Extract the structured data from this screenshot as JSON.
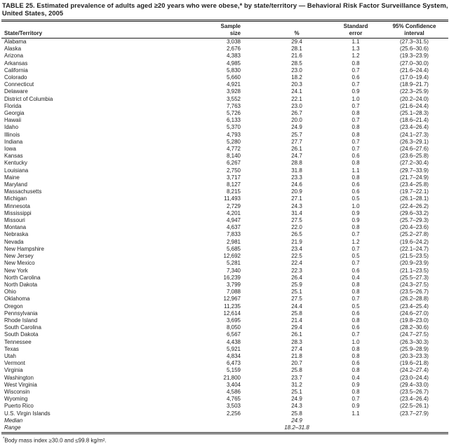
{
  "title": "TABLE 25. Estimated prevalence of adults aged ≥20 years who were obese,* by state/territory — Behavioral Risk Factor Surveillance System, United States, 2005",
  "table": {
    "headers": {
      "state": "State/Territory",
      "sample": [
        "Sample",
        "size"
      ],
      "pct": "%",
      "se": [
        "Standard",
        "error"
      ],
      "ci": [
        "95% Confidence",
        "interval"
      ]
    },
    "rows": [
      {
        "state": "Alabama",
        "sample": "3,038",
        "pct": "29.4",
        "se": "1.1",
        "ci": "(27.3–31.5)"
      },
      {
        "state": "Alaska",
        "sample": "2,676",
        "pct": "28.1",
        "se": "1.3",
        "ci": "(25.6–30.6)"
      },
      {
        "state": "Arizona",
        "sample": "4,383",
        "pct": "21.6",
        "se": "1.2",
        "ci": "(19.3–23.9)"
      },
      {
        "state": "Arkansas",
        "sample": "4,985",
        "pct": "28.5",
        "se": "0.8",
        "ci": "(27.0–30.0)"
      },
      {
        "state": "California",
        "sample": "5,830",
        "pct": "23.0",
        "se": "0.7",
        "ci": "(21.6–24.4)"
      },
      {
        "state": "Colorado",
        "sample": "5,660",
        "pct": "18.2",
        "se": "0.6",
        "ci": "(17.0–19.4)"
      },
      {
        "state": "Connecticut",
        "sample": "4,921",
        "pct": "20.3",
        "se": "0.7",
        "ci": "(18.9–21.7)"
      },
      {
        "state": "Delaware",
        "sample": "3,928",
        "pct": "24.1",
        "se": "0.9",
        "ci": "(22.3–25.9)"
      },
      {
        "state": "District of Columbia",
        "sample": "3,552",
        "pct": "22.1",
        "se": "1.0",
        "ci": "(20.2–24.0)"
      },
      {
        "state": "Florida",
        "sample": "7,763",
        "pct": "23.0",
        "se": "0.7",
        "ci": "(21.6–24.4)"
      },
      {
        "state": "Georgia",
        "sample": "5,726",
        "pct": "26.7",
        "se": "0.8",
        "ci": "(25.1–28.3)"
      },
      {
        "state": "Hawaii",
        "sample": "6,133",
        "pct": "20.0",
        "se": "0.7",
        "ci": "(18.6–21.4)"
      },
      {
        "state": "Idaho",
        "sample": "5,370",
        "pct": "24.9",
        "se": "0.8",
        "ci": "(23.4–26.4)"
      },
      {
        "state": "Illinois",
        "sample": "4,793",
        "pct": "25.7",
        "se": "0.8",
        "ci": "(24.1–27.3)"
      },
      {
        "state": "Indiana",
        "sample": "5,280",
        "pct": "27.7",
        "se": "0.7",
        "ci": "(26.3–29.1)"
      },
      {
        "state": "Iowa",
        "sample": "4,772",
        "pct": "26.1",
        "se": "0.7",
        "ci": "(24.6–27.6)"
      },
      {
        "state": "Kansas",
        "sample": "8,140",
        "pct": "24.7",
        "se": "0.6",
        "ci": "(23.6–25.8)"
      },
      {
        "state": "Kentucky",
        "sample": "6,267",
        "pct": "28.8",
        "se": "0.8",
        "ci": "(27.2–30.4)"
      },
      {
        "state": "Louisiana",
        "sample": "2,750",
        "pct": "31.8",
        "se": "1.1",
        "ci": "(29.7–33.9)"
      },
      {
        "state": "Maine",
        "sample": "3,717",
        "pct": "23.3",
        "se": "0.8",
        "ci": "(21.7–24.9)"
      },
      {
        "state": "Maryland",
        "sample": "8,127",
        "pct": "24.6",
        "se": "0.6",
        "ci": "(23.4–25.8)"
      },
      {
        "state": "Massachusetts",
        "sample": "8,215",
        "pct": "20.9",
        "se": "0.6",
        "ci": "(19.7–22.1)"
      },
      {
        "state": "Michigan",
        "sample": "11,493",
        "pct": "27.1",
        "se": "0.5",
        "ci": "(26.1–28.1)"
      },
      {
        "state": "Minnesota",
        "sample": "2,729",
        "pct": "24.3",
        "se": "1.0",
        "ci": "(22.4–26.2)"
      },
      {
        "state": "Mississippi",
        "sample": "4,201",
        "pct": "31.4",
        "se": "0.9",
        "ci": "(29.6–33.2)"
      },
      {
        "state": "Missouri",
        "sample": "4,947",
        "pct": "27.5",
        "se": "0.9",
        "ci": "(25.7–29.3)"
      },
      {
        "state": "Montana",
        "sample": "4,637",
        "pct": "22.0",
        "se": "0.8",
        "ci": "(20.4–23.6)"
      },
      {
        "state": "Nebraska",
        "sample": "7,833",
        "pct": "26.5",
        "se": "0.7",
        "ci": "(25.2–27.8)"
      },
      {
        "state": "Nevada",
        "sample": "2,981",
        "pct": "21.9",
        "se": "1.2",
        "ci": "(19.6–24.2)"
      },
      {
        "state": "New Hampshire",
        "sample": "5,685",
        "pct": "23.4",
        "se": "0.7",
        "ci": "(22.1–24.7)"
      },
      {
        "state": "New Jersey",
        "sample": "12,692",
        "pct": "22.5",
        "se": "0.5",
        "ci": "(21.5–23.5)"
      },
      {
        "state": "New Mexico",
        "sample": "5,281",
        "pct": "22.4",
        "se": "0.7",
        "ci": "(20.9–23.9)"
      },
      {
        "state": "New York",
        "sample": "7,340",
        "pct": "22.3",
        "se": "0.6",
        "ci": "(21.1–23.5)"
      },
      {
        "state": "North Carolina",
        "sample": "16,239",
        "pct": "26.4",
        "se": "0.4",
        "ci": "(25.5–27.3)"
      },
      {
        "state": "North Dakota",
        "sample": "3,799",
        "pct": "25.9",
        "se": "0.8",
        "ci": "(24.3–27.5)"
      },
      {
        "state": "Ohio",
        "sample": "7,088",
        "pct": "25.1",
        "se": "0.8",
        "ci": "(23.5–26.7)"
      },
      {
        "state": "Oklahoma",
        "sample": "12,967",
        "pct": "27.5",
        "se": "0.7",
        "ci": "(26.2–28.8)"
      },
      {
        "state": "Oregon",
        "sample": "11,235",
        "pct": "24.4",
        "se": "0.5",
        "ci": "(23.4–25.4)"
      },
      {
        "state": "Pennsylvania",
        "sample": "12,614",
        "pct": "25.8",
        "se": "0.6",
        "ci": "(24.6–27.0)"
      },
      {
        "state": "Rhode Island",
        "sample": "3,695",
        "pct": "21.4",
        "se": "0.8",
        "ci": "(19.8–23.0)"
      },
      {
        "state": "South Carolina",
        "sample": "8,050",
        "pct": "29.4",
        "se": "0.6",
        "ci": "(28.2–30.6)"
      },
      {
        "state": "South Dakota",
        "sample": "6,567",
        "pct": "26.1",
        "se": "0.7",
        "ci": "(24.7–27.5)"
      },
      {
        "state": "Tennessee",
        "sample": "4,438",
        "pct": "28.3",
        "se": "1.0",
        "ci": "(26.3–30.3)"
      },
      {
        "state": "Texas",
        "sample": "5,921",
        "pct": "27.4",
        "se": "0.8",
        "ci": "(25.9–28.9)"
      },
      {
        "state": "Utah",
        "sample": "4,834",
        "pct": "21.8",
        "se": "0.8",
        "ci": "(20.3–23.3)"
      },
      {
        "state": "Vermont",
        "sample": "6,473",
        "pct": "20.7",
        "se": "0.6",
        "ci": "(19.6–21.8)"
      },
      {
        "state": "Virginia",
        "sample": "5,159",
        "pct": "25.8",
        "se": "0.8",
        "ci": "(24.2–27.4)"
      },
      {
        "state": "Washington",
        "sample": "21,800",
        "pct": "23.7",
        "se": "0.4",
        "ci": "(23.0–24.4)"
      },
      {
        "state": "West Virginia",
        "sample": "3,404",
        "pct": "31.2",
        "se": "0.9",
        "ci": "(29.4–33.0)"
      },
      {
        "state": "Wisconsin",
        "sample": "4,586",
        "pct": "25.1",
        "se": "0.8",
        "ci": "(23.5–26.7)"
      },
      {
        "state": "Wyoming",
        "sample": "4,765",
        "pct": "24.9",
        "se": "0.7",
        "ci": "(23.4–26.4)"
      },
      {
        "state": "Puerto Rico",
        "sample": "3,503",
        "pct": "24.3",
        "se": "0.9",
        "ci": "(22.5–26.1)"
      },
      {
        "state": "U.S. Virgin Islands",
        "sample": "2,256",
        "pct": "25.8",
        "se": "1.1",
        "ci": "(23.7–27.9)"
      }
    ],
    "summary_rows": [
      {
        "state": "Median",
        "sample": "",
        "pct": "24.9",
        "se": "",
        "ci": ""
      },
      {
        "state": "Range",
        "sample": "",
        "pct": "18.2–31.8",
        "se": "",
        "ci": ""
      }
    ]
  },
  "footnote": {
    "marker": "*",
    "text": "Body mass index ≥30.0 and ≤99.8 kg/m²."
  },
  "colors": {
    "text": "#1c1c1c",
    "background": "#ffffff"
  }
}
